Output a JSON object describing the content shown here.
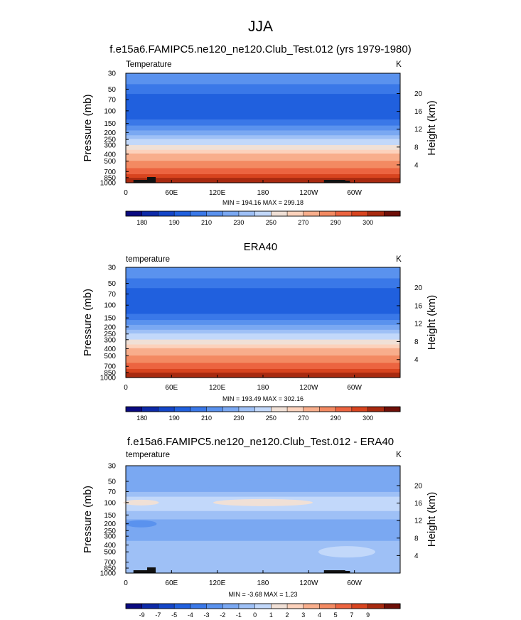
{
  "figure_title": "JJA",
  "chart_data": [
    {
      "type": "heatmap",
      "title": "f.e15a6.FAMIPC5.ne120_ne120.Club_Test.012 (yrs 1979-1980)",
      "variable_label": "Temperature",
      "units": "K",
      "ylabel": "Pressure (mb)",
      "y2label": "Height (km)",
      "xticks": [
        "0",
        "60E",
        "120E",
        "180",
        "120W",
        "60W"
      ],
      "xtick_lons": [
        0,
        60,
        120,
        180,
        240,
        300
      ],
      "xlim": [
        0,
        360
      ],
      "yticks": [
        30,
        50,
        70,
        100,
        150,
        200,
        250,
        300,
        400,
        500,
        700,
        850,
        1000
      ],
      "ylim": [
        1000,
        30
      ],
      "yscale": "log",
      "height_ticks": [
        4,
        8,
        12,
        16,
        20
      ],
      "stats": "MIN = 194.16  MAX = 299.18",
      "min": 194.16,
      "max": 299.18,
      "colorbar_labels": [
        "180",
        "190",
        "210",
        "230",
        "250",
        "270",
        "290",
        "300"
      ],
      "colorbar_label_after": [
        1,
        3,
        5,
        7,
        9,
        11,
        13,
        15
      ],
      "levels_note": "17 filled bins",
      "profile_p": [
        30,
        50,
        70,
        100,
        150,
        200,
        250,
        300,
        400,
        500,
        700,
        850,
        1000
      ],
      "profile_bin": [
        5.5,
        4,
        3,
        2.5,
        4,
        6,
        7.5,
        8.5,
        10.5,
        11.5,
        13,
        14.5,
        15.5
      ]
    },
    {
      "type": "heatmap",
      "title": "ERA40",
      "variable_label": "temperature",
      "units": "K",
      "ylabel": "Pressure (mb)",
      "y2label": "Height (km)",
      "xticks": [
        "0",
        "60E",
        "120E",
        "180",
        "120W",
        "60W"
      ],
      "xtick_lons": [
        0,
        60,
        120,
        180,
        240,
        300
      ],
      "xlim": [
        0,
        360
      ],
      "yticks": [
        30,
        50,
        70,
        100,
        150,
        200,
        250,
        300,
        400,
        500,
        700,
        850,
        1000
      ],
      "ylim": [
        1000,
        30
      ],
      "yscale": "log",
      "height_ticks": [
        4,
        8,
        12,
        16,
        20
      ],
      "stats": "MIN = 193.49  MAX = 302.16",
      "min": 193.49,
      "max": 302.16,
      "colorbar_labels": [
        "180",
        "190",
        "210",
        "230",
        "250",
        "270",
        "290",
        "300"
      ],
      "colorbar_label_after": [
        1,
        3,
        5,
        7,
        9,
        11,
        13,
        15
      ],
      "profile_p": [
        30,
        50,
        70,
        100,
        150,
        200,
        250,
        300,
        400,
        500,
        700,
        850,
        1000
      ],
      "profile_bin": [
        5.5,
        4,
        3,
        2.5,
        4,
        6,
        7.5,
        8.5,
        10.5,
        11.5,
        13,
        14.5,
        15.5
      ]
    },
    {
      "type": "heatmap",
      "title": "f.e15a6.FAMIPC5.ne120_ne120.Club_Test.012 - ERA40",
      "variable_label": "temperature",
      "units": "K",
      "ylabel": "Pressure (mb)",
      "y2label": "Height (km)",
      "xticks": [
        "0",
        "60E",
        "120E",
        "180",
        "120W",
        "60W"
      ],
      "xtick_lons": [
        0,
        60,
        120,
        180,
        240,
        300
      ],
      "xlim": [
        0,
        360
      ],
      "yticks": [
        30,
        50,
        70,
        100,
        150,
        200,
        250,
        300,
        400,
        500,
        700,
        850,
        1000
      ],
      "ylim": [
        1000,
        30
      ],
      "yscale": "log",
      "height_ticks": [
        4,
        8,
        12,
        16,
        20
      ],
      "stats": "MIN = -3.68  MAX =  1.23",
      "min": -3.68,
      "max": 1.23,
      "colorbar_labels": [
        "-9",
        "-7",
        "-5",
        "-4",
        "-3",
        "-2",
        "-1",
        "0",
        "1",
        "2",
        "3",
        "4",
        "5",
        "7",
        "9"
      ],
      "colorbar_label_after": [
        1,
        2,
        3,
        4,
        5,
        6,
        7,
        8,
        9,
        10,
        11,
        12,
        13,
        14,
        15
      ],
      "profile_p": [
        30,
        50,
        70,
        100,
        150,
        200,
        250,
        300,
        400,
        500,
        700,
        850,
        1000
      ],
      "profile_bin": [
        5.5,
        6,
        6.5,
        8.5,
        7,
        6,
        6,
        6,
        7,
        7,
        6.5,
        7,
        7
      ]
    }
  ],
  "colors": {
    "temperature_palette": [
      "#0a0a80",
      "#0d2aa8",
      "#1446c8",
      "#2060de",
      "#3a78e8",
      "#5a92ee",
      "#7aa8f2",
      "#9ec0f6",
      "#c2d8fa",
      "#f0e0d6",
      "#fcd2bc",
      "#f8ae8c",
      "#f38a62",
      "#ec6440",
      "#d8441f",
      "#a82a10",
      "#6e0f08"
    ],
    "difference_palette": [
      "#0a0a80",
      "#0d2aa8",
      "#1446c8",
      "#2060de",
      "#3a78e8",
      "#5a92ee",
      "#7aa8f2",
      "#9ec0f6",
      "#c2d8fa",
      "#f0e0d6",
      "#fcd2bc",
      "#f8ae8c",
      "#f38a62",
      "#ec6440",
      "#d8441f",
      "#a82a10",
      "#6e0f08"
    ],
    "topography": "#111111"
  }
}
